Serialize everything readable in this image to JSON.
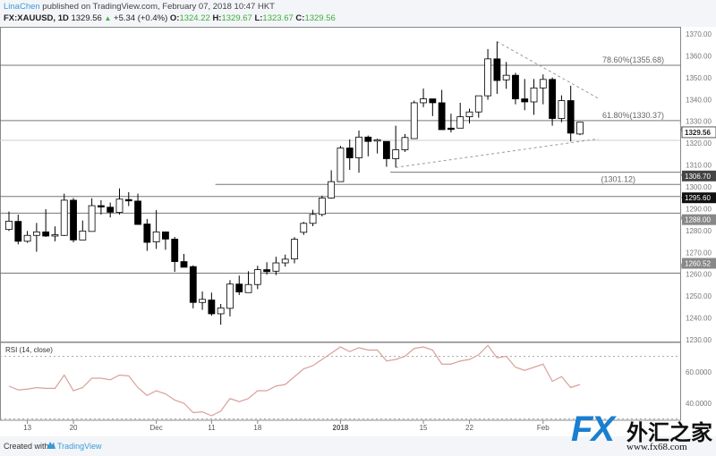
{
  "header": {
    "user": "LinaChen",
    "published": " published on TradingView.com, February 07, 2018 10:47 HKT",
    "symbol": "FX:XAUUSD, 1D",
    "last": "1329.56",
    "change": "+5.34 (+0.4%)",
    "o_label": "O:",
    "o": "1324.22",
    "h_label": "H:",
    "h": "1329.67",
    "l_label": "L:",
    "l": "1323.67",
    "c_label": "C:",
    "c": "1329.56"
  },
  "colors": {
    "up_body": "#ffffff",
    "down_body": "#000000",
    "accent": "#3b9bd8",
    "green": "#3fae3f",
    "rsi": "#d9a09a"
  },
  "chart_data": {
    "type": "candlestick",
    "price_axis": {
      "min": 1230,
      "max": 1370,
      "ticks": [
        1370,
        1360,
        1350,
        1340,
        1330,
        1320,
        1310,
        1300,
        1290,
        1280,
        1270,
        1260,
        1250,
        1240,
        1230
      ]
    },
    "badges": [
      {
        "value": "1329.56",
        "style": "last"
      },
      {
        "value": "1306.70",
        "style": "dark"
      },
      {
        "value": "1295.60",
        "style": "black"
      },
      {
        "value": "1288.00",
        "style": "gray"
      },
      {
        "value": "1260.52",
        "style": "gray"
      }
    ],
    "levels": [
      {
        "price": 1355.68,
        "label": "78.60%(1355.68)"
      },
      {
        "price": 1330.37,
        "label": "61.80%(1330.37)"
      },
      {
        "price": 1321.3,
        "label": ""
      },
      {
        "price": 1306.7,
        "label": "",
        "from_index": 42
      },
      {
        "price": 1301.12,
        "label": "(1301.12)",
        "from_index": 23
      },
      {
        "price": 1295.6,
        "label": ""
      },
      {
        "price": 1288.0,
        "label": ""
      },
      {
        "price": 1260.52,
        "label": ""
      }
    ],
    "trendlines": [
      {
        "from": [
          53,
          1366.5
        ],
        "to": [
          64,
          1340.5
        ]
      },
      {
        "from": [
          42,
          1308.9
        ],
        "to": [
          64,
          1322
        ]
      }
    ],
    "ohlc": [
      [
        1280.5,
        1288.7,
        1279.8,
        1284.3
      ],
      [
        1284.2,
        1287.3,
        1273.7,
        1275.1
      ],
      [
        1275.1,
        1279.8,
        1274.4,
        1277.8
      ],
      [
        1277.8,
        1283.5,
        1270.3,
        1279.4
      ],
      [
        1279.4,
        1289.8,
        1277.1,
        1277.5
      ],
      [
        1278,
        1281.9,
        1275.1,
        1278.1
      ],
      [
        1277.8,
        1296.9,
        1277.5,
        1293.9
      ],
      [
        1293.9,
        1294.9,
        1274.6,
        1275.7
      ],
      [
        1275.7,
        1284.6,
        1275.7,
        1279.8
      ],
      [
        1279.6,
        1294.8,
        1279.6,
        1291.4
      ],
      [
        1291.4,
        1293.9,
        1287.3,
        1291.0
      ],
      [
        1290.7,
        1292.8,
        1286,
        1288.4
      ],
      [
        1288.3,
        1299.3,
        1287.3,
        1294.4
      ],
      [
        1294.2,
        1297.6,
        1291.2,
        1293.6
      ],
      [
        1293.5,
        1296.9,
        1282.6,
        1282.8
      ],
      [
        1283,
        1285.3,
        1270.7,
        1274.6
      ],
      [
        1274.8,
        1289.4,
        1271.6,
        1279.4
      ],
      [
        1279.4,
        1279.4,
        1271.2,
        1276.1
      ],
      [
        1276.1,
        1277.1,
        1261.1,
        1265.8
      ],
      [
        1265.8,
        1269.3,
        1263.2,
        1263.2
      ],
      [
        1263.5,
        1264.1,
        1244.4,
        1247.1
      ],
      [
        1247.1,
        1252.1,
        1243.7,
        1248.5
      ],
      [
        1248.2,
        1251.6,
        1241,
        1241.9
      ],
      [
        1241.9,
        1246.4,
        1236.9,
        1244.6
      ],
      [
        1244.4,
        1257.3,
        1240.7,
        1255.5
      ],
      [
        1255.5,
        1259.4,
        1250.5,
        1251.9
      ],
      [
        1251.6,
        1261.4,
        1251.6,
        1255.3
      ],
      [
        1255.3,
        1263.9,
        1253.2,
        1262.1
      ],
      [
        1262.1,
        1265.5,
        1259.8,
        1261.2
      ],
      [
        1261.4,
        1268,
        1259.6,
        1265.2
      ],
      [
        1265.2,
        1269,
        1263.5,
        1266.9
      ],
      [
        1267,
        1277,
        1265,
        1276
      ],
      [
        1279.2,
        1284,
        1278,
        1283.3
      ],
      [
        1283.3,
        1289.5,
        1282,
        1287.4
      ],
      [
        1287.4,
        1296,
        1286.5,
        1294.9
      ],
      [
        1294.9,
        1307.6,
        1294.6,
        1302.4
      ],
      [
        1302.4,
        1318.8,
        1302.4,
        1317.8
      ],
      [
        1317.8,
        1321.7,
        1307.8,
        1313.3
      ],
      [
        1313.3,
        1325.8,
        1306.5,
        1322.8
      ],
      [
        1322.8,
        1323.5,
        1314,
        1320.8
      ],
      [
        1321.2,
        1322.1,
        1315.3,
        1321.6
      ],
      [
        1320.8,
        1320.8,
        1309.2,
        1312.9
      ],
      [
        1312.9,
        1328,
        1308.9,
        1317
      ],
      [
        1317,
        1324.2,
        1316,
        1322.6
      ],
      [
        1322.1,
        1339.5,
        1322.1,
        1338.5
      ],
      [
        1338.5,
        1345,
        1336.5,
        1340.3
      ],
      [
        1340.3,
        1340.3,
        1332.4,
        1338.5
      ],
      [
        1338.5,
        1344.4,
        1326.2,
        1326.2
      ],
      [
        1326.9,
        1333.5,
        1324.9,
        1326.4
      ],
      [
        1326.9,
        1338.5,
        1326.9,
        1332.1
      ],
      [
        1332.1,
        1335.8,
        1329,
        1334.3
      ],
      [
        1334.3,
        1341.7,
        1331.7,
        1341.7
      ],
      [
        1341.7,
        1363.1,
        1339.9,
        1358.6
      ],
      [
        1358.6,
        1366.5,
        1342.6,
        1348.7
      ],
      [
        1349,
        1357.2,
        1344.9,
        1351.1
      ],
      [
        1351.1,
        1352.2,
        1337.8,
        1340.3
      ],
      [
        1340.3,
        1349.4,
        1335.1,
        1338.9
      ],
      [
        1338.9,
        1349.4,
        1333,
        1345.3
      ],
      [
        1345.3,
        1351.5,
        1337.8,
        1349.2
      ],
      [
        1349.2,
        1350.1,
        1328,
        1331.3
      ],
      [
        1331.3,
        1341.9,
        1329.6,
        1339.5
      ],
      [
        1339.5,
        1346.3,
        1320.8,
        1324.6
      ],
      [
        1324.2,
        1329.7,
        1323.7,
        1329.6
      ]
    ],
    "rsi": {
      "label": "RSI (14, close)",
      "ticks": [
        "60.0000",
        "40.0000"
      ],
      "bands": [
        70,
        30
      ],
      "values": [
        51,
        48.5,
        49,
        50,
        49.5,
        49.5,
        58,
        48,
        50,
        56,
        56,
        55,
        58,
        57.5,
        50,
        45,
        48,
        46,
        42,
        40,
        34,
        34.5,
        32,
        35,
        43,
        41,
        43,
        48,
        48,
        51,
        52,
        57,
        62,
        64,
        68,
        72,
        76,
        73,
        75.5,
        74,
        74,
        67,
        68,
        70,
        75,
        76,
        74,
        65,
        65,
        67,
        68,
        71,
        77,
        69,
        70,
        63,
        61,
        63,
        65,
        54,
        57,
        50,
        52
      ]
    },
    "x_labels": [
      {
        "label": "13",
        "index": 2
      },
      {
        "label": "20",
        "index": 7
      },
      {
        "label": "Dec",
        "index": 16
      },
      {
        "label": "11",
        "index": 22
      },
      {
        "label": "18",
        "index": 27
      },
      {
        "label": "2018",
        "index": 36
      },
      {
        "label": "15",
        "index": 45
      },
      {
        "label": "22",
        "index": 50
      },
      {
        "label": "Feb",
        "index": 58
      }
    ]
  },
  "footer": {
    "created": "Created with",
    "brand": "TradingView"
  },
  "watermark": {
    "fx": "FX",
    "cn": "外汇之家",
    "url": "www.fx68.com"
  }
}
